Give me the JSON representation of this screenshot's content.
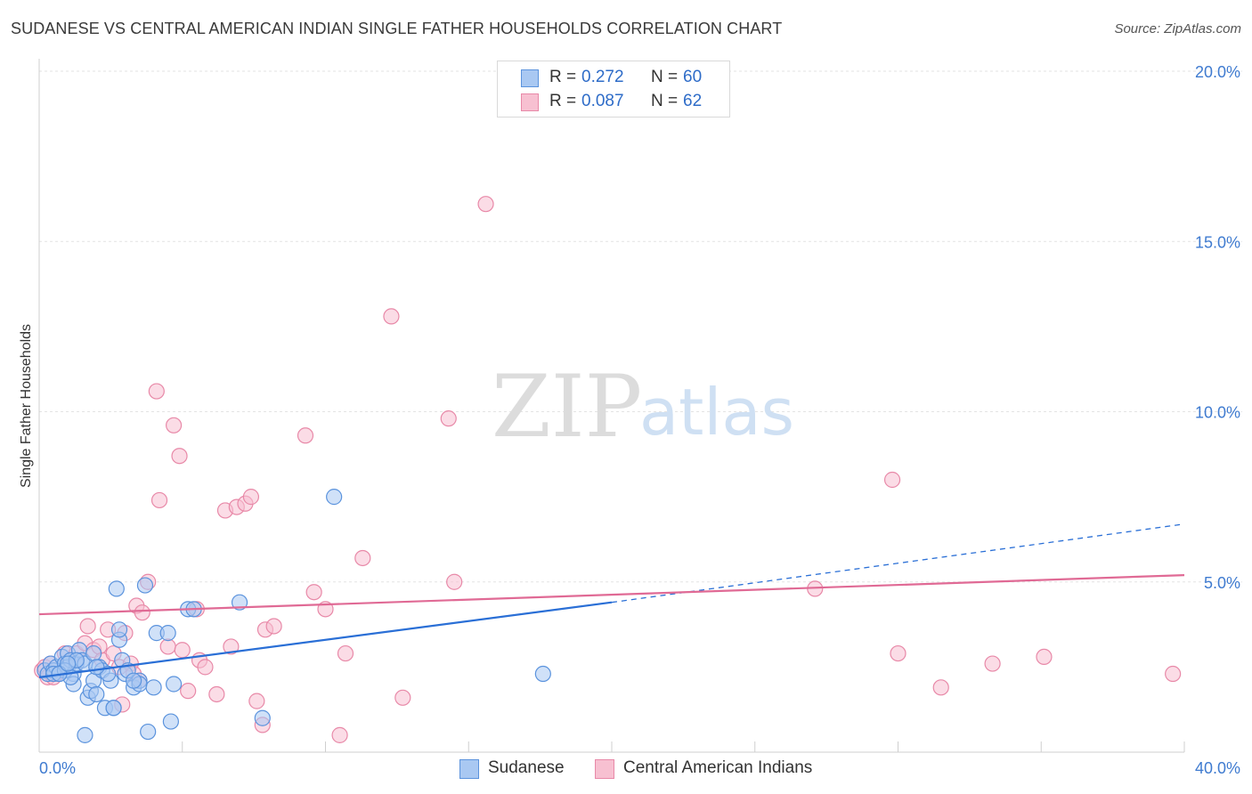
{
  "header": {
    "title": "SUDANESE VS CENTRAL AMERICAN INDIAN SINGLE FATHER HOUSEHOLDS CORRELATION CHART",
    "source": "Source: ZipAtlas.com"
  },
  "watermark": {
    "part1": "ZIP",
    "part2": "atlas"
  },
  "legend": {
    "rows": [
      {
        "r_label": "R =",
        "r_value": "0.272",
        "n_label": "N =",
        "n_value": "60"
      },
      {
        "r_label": "R =",
        "r_value": "0.087",
        "n_label": "N =",
        "n_value": "62"
      }
    ]
  },
  "colors": {
    "blue_fill": "#a9c8f2",
    "blue_stroke": "#5b93dd",
    "blue_line": "#2a6fd6",
    "pink_fill": "#f7c0d1",
    "pink_stroke": "#e889a8",
    "pink_line": "#e06a95",
    "grid": "#e3e3e3",
    "tick_text": "#3f7bd0"
  },
  "chart_data": {
    "type": "scatter",
    "title": "SUDANESE VS CENTRAL AMERICAN INDIAN SINGLE FATHER HOUSEHOLDS CORRELATION CHART",
    "xlabel": "",
    "ylabel": "Single Father Households",
    "xlim": [
      0,
      40
    ],
    "ylim": [
      0,
      20
    ],
    "x_tick_labels": [
      "0.0%",
      "40.0%"
    ],
    "y_tick_labels": [
      "5.0%",
      "10.0%",
      "15.0%",
      "20.0%"
    ],
    "y_tick_values": [
      5,
      10,
      15,
      20
    ],
    "grid": true,
    "legend_placement": "top-center",
    "series": [
      {
        "name": "Sudanese",
        "color": "#5b93dd",
        "points": [
          [
            0.2,
            2.4
          ],
          [
            0.3,
            2.3
          ],
          [
            0.4,
            2.6
          ],
          [
            0.5,
            2.4
          ],
          [
            0.6,
            2.5
          ],
          [
            0.7,
            2.3
          ],
          [
            0.8,
            2.8
          ],
          [
            0.9,
            2.6
          ],
          [
            1.0,
            2.9
          ],
          [
            1.0,
            2.5
          ],
          [
            1.1,
            2.7
          ],
          [
            1.2,
            2.3
          ],
          [
            1.2,
            2.0
          ],
          [
            1.3,
            2.6
          ],
          [
            1.4,
            3.0
          ],
          [
            1.5,
            2.7
          ],
          [
            1.6,
            2.6
          ],
          [
            1.3,
            2.7
          ],
          [
            1.7,
            1.6
          ],
          [
            1.8,
            1.8
          ],
          [
            1.9,
            2.1
          ],
          [
            1.9,
            2.9
          ],
          [
            2.0,
            1.7
          ],
          [
            1.6,
            0.5
          ],
          [
            2.1,
            2.5
          ],
          [
            2.2,
            2.4
          ],
          [
            2.3,
            1.3
          ],
          [
            2.5,
            2.1
          ],
          [
            2.6,
            1.3
          ],
          [
            2.7,
            4.8
          ],
          [
            2.8,
            3.3
          ],
          [
            2.9,
            2.7
          ],
          [
            2.8,
            3.6
          ],
          [
            3.0,
            2.3
          ],
          [
            3.1,
            2.4
          ],
          [
            2.6,
            1.3
          ],
          [
            3.3,
            1.9
          ],
          [
            3.5,
            2.1
          ],
          [
            3.5,
            2.0
          ],
          [
            3.7,
            4.9
          ],
          [
            3.8,
            0.6
          ],
          [
            4.0,
            1.9
          ],
          [
            4.1,
            3.5
          ],
          [
            4.5,
            3.5
          ],
          [
            4.6,
            0.9
          ],
          [
            4.7,
            2.0
          ],
          [
            5.2,
            4.2
          ],
          [
            5.4,
            4.2
          ],
          [
            7.0,
            4.4
          ],
          [
            7.8,
            1.0
          ],
          [
            10.3,
            7.5
          ],
          [
            17.6,
            2.3
          ],
          [
            0.5,
            2.3
          ],
          [
            0.9,
            2.4
          ],
          [
            1.1,
            2.2
          ],
          [
            2.4,
            2.3
          ],
          [
            0.7,
            2.3
          ],
          [
            3.3,
            2.1
          ],
          [
            1.0,
            2.6
          ],
          [
            2.0,
            2.5
          ]
        ]
      },
      {
        "name": "Central American Indians",
        "color": "#e889a8",
        "points": [
          [
            0.1,
            2.4
          ],
          [
            0.2,
            2.5
          ],
          [
            0.3,
            2.2
          ],
          [
            0.4,
            2.6
          ],
          [
            0.6,
            2.3
          ],
          [
            0.9,
            2.9
          ],
          [
            1.3,
            2.9
          ],
          [
            1.6,
            3.2
          ],
          [
            1.7,
            3.7
          ],
          [
            1.9,
            3.0
          ],
          [
            2.1,
            3.1
          ],
          [
            2.2,
            2.7
          ],
          [
            2.4,
            3.6
          ],
          [
            2.6,
            2.9
          ],
          [
            2.8,
            2.5
          ],
          [
            2.9,
            1.4
          ],
          [
            3.0,
            3.5
          ],
          [
            3.2,
            2.6
          ],
          [
            3.3,
            2.3
          ],
          [
            3.4,
            4.3
          ],
          [
            3.5,
            2.1
          ],
          [
            3.6,
            4.1
          ],
          [
            3.8,
            5.0
          ],
          [
            4.1,
            10.6
          ],
          [
            4.2,
            7.4
          ],
          [
            4.5,
            3.1
          ],
          [
            4.7,
            9.6
          ],
          [
            4.9,
            8.7
          ],
          [
            5.0,
            3.0
          ],
          [
            5.2,
            1.8
          ],
          [
            5.5,
            4.2
          ],
          [
            5.6,
            2.7
          ],
          [
            5.8,
            2.5
          ],
          [
            6.2,
            1.7
          ],
          [
            6.5,
            7.1
          ],
          [
            6.7,
            3.1
          ],
          [
            6.9,
            7.2
          ],
          [
            7.2,
            7.3
          ],
          [
            7.4,
            7.5
          ],
          [
            7.6,
            1.5
          ],
          [
            7.8,
            0.8
          ],
          [
            7.9,
            3.6
          ],
          [
            8.2,
            3.7
          ],
          [
            9.3,
            9.3
          ],
          [
            9.6,
            4.7
          ],
          [
            10.0,
            4.2
          ],
          [
            10.5,
            0.5
          ],
          [
            10.7,
            2.9
          ],
          [
            11.3,
            5.7
          ],
          [
            12.3,
            12.8
          ],
          [
            12.7,
            1.6
          ],
          [
            14.3,
            9.8
          ],
          [
            14.5,
            5.0
          ],
          [
            15.6,
            16.1
          ],
          [
            27.1,
            4.8
          ],
          [
            29.8,
            8.0
          ],
          [
            30.0,
            2.9
          ],
          [
            31.5,
            1.9
          ],
          [
            33.3,
            2.6
          ],
          [
            35.1,
            2.8
          ],
          [
            39.6,
            2.3
          ],
          [
            0.5,
            2.2
          ]
        ]
      }
    ],
    "trend_lines": [
      {
        "series": "Sudanese",
        "x_start": 0,
        "y_start": 2.2,
        "x_solid_end": 20,
        "y_solid_end": 4.4,
        "x_end": 40,
        "y_end": 6.7,
        "extension_dashed": true
      },
      {
        "series": "Central American Indians",
        "x_start": 0,
        "y_start": 4.05,
        "x_end": 40,
        "y_end": 5.2
      }
    ]
  },
  "bottom_legend": {
    "items": [
      "Sudanese",
      "Central American Indians"
    ]
  }
}
